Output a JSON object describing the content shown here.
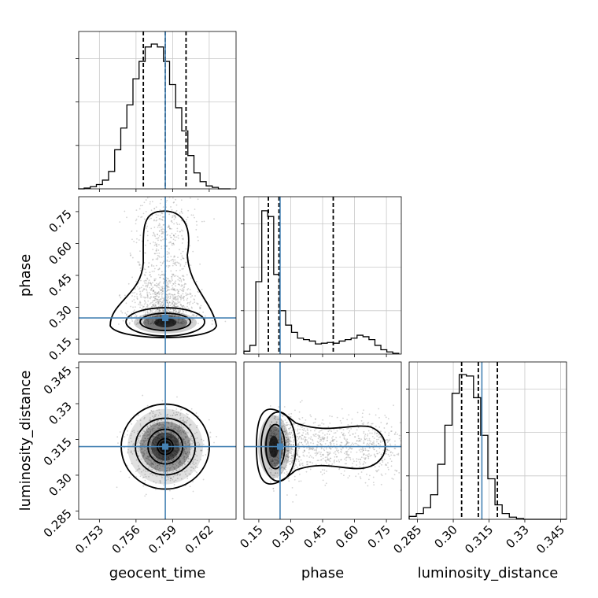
{
  "chart_data": {
    "type": "corner",
    "parameters": [
      "geocent_time",
      "phase",
      "luminosity_distance"
    ],
    "truths": {
      "geocent_time": 0.7584,
      "phase": 0.25,
      "luminosity_distance": 0.312
    },
    "panels": [
      {
        "type": "histogram",
        "parameter": "geocent_time",
        "xlim": [
          0.7513,
          0.7642
        ],
        "xticks": [
          0.753,
          0.756,
          0.759,
          0.762
        ],
        "bin_edges": [
          0.75125,
          0.75175,
          0.75225,
          0.75275,
          0.75325,
          0.75375,
          0.75425,
          0.75475,
          0.75525,
          0.75575,
          0.75625,
          0.75675,
          0.75725,
          0.75775,
          0.75825,
          0.75875,
          0.75925,
          0.75975,
          0.76025,
          0.76075,
          0.76125,
          0.76175,
          0.76225,
          0.76275,
          0.76325,
          0.76375
        ],
        "counts": [
          0,
          0.005,
          0.015,
          0.03,
          0.06,
          0.12,
          0.27,
          0.42,
          0.58,
          0.76,
          0.88,
          0.98,
          1.0,
          0.98,
          0.88,
          0.72,
          0.56,
          0.4,
          0.23,
          0.11,
          0.05,
          0.02,
          0.01,
          0,
          0
        ],
        "quantiles": [
          0.7566,
          0.7584,
          0.7601
        ],
        "grid": true
      },
      {
        "type": "histogram",
        "parameter": "phase",
        "xlim": [
          0.08,
          0.82
        ],
        "xticks": [
          0.15,
          0.3,
          0.45,
          0.6,
          0.75
        ],
        "bin_edges": [
          0.08,
          0.108,
          0.136,
          0.164,
          0.192,
          0.22,
          0.248,
          0.276,
          0.304,
          0.332,
          0.36,
          0.388,
          0.416,
          0.444,
          0.472,
          0.5,
          0.528,
          0.556,
          0.584,
          0.612,
          0.64,
          0.668,
          0.696,
          0.724,
          0.752,
          0.78,
          0.808
        ],
        "counts": [
          0.02,
          0.06,
          0.5,
          0.99,
          0.95,
          0.55,
          0.3,
          0.2,
          0.15,
          0.11,
          0.1,
          0.09,
          0.07,
          0.075,
          0.08,
          0.075,
          0.09,
          0.1,
          0.11,
          0.13,
          0.12,
          0.1,
          0.06,
          0.03,
          0.015,
          0.005
        ],
        "quantiles": [
          0.195,
          0.245,
          0.5
        ],
        "grid": true
      },
      {
        "type": "histogram",
        "parameter": "luminosity_distance",
        "xlim": [
          0.2815,
          0.3475
        ],
        "xticks": [
          0.285,
          0.3,
          0.315,
          0.33,
          0.345
        ],
        "bin_edges": [
          0.2815,
          0.2845,
          0.2875,
          0.2905,
          0.2935,
          0.2965,
          0.2995,
          0.3025,
          0.3055,
          0.3085,
          0.3115,
          0.3145,
          0.3175,
          0.3205,
          0.3235,
          0.3265,
          0.3295,
          0.3325,
          0.3355,
          0.3385,
          0.3415,
          0.3445,
          0.3475
        ],
        "counts": [
          0.02,
          0.04,
          0.08,
          0.17,
          0.38,
          0.65,
          0.87,
          1.0,
          0.99,
          0.84,
          0.58,
          0.28,
          0.1,
          0.04,
          0.015,
          0.005,
          0,
          0,
          0,
          0,
          0,
          0
        ],
        "quantiles": [
          0.3035,
          0.3105,
          0.3185
        ],
        "grid": true
      },
      {
        "type": "2d_density",
        "x": "geocent_time",
        "y": "phase",
        "xlim": [
          0.7513,
          0.7642
        ],
        "ylim": [
          0.08,
          0.82
        ],
        "yticks": [
          0.15,
          0.3,
          0.45,
          0.6,
          0.75
        ],
        "ylabel": "phase"
      },
      {
        "type": "2d_density",
        "x": "geocent_time",
        "y": "luminosity_distance",
        "xlim": [
          0.7513,
          0.7642
        ],
        "ylim": [
          0.2815,
          0.3475
        ],
        "xticks": [
          0.753,
          0.756,
          0.759,
          0.762
        ],
        "yticks": [
          0.285,
          0.3,
          0.315,
          0.33,
          0.345
        ],
        "xlabel": "geocent_time",
        "ylabel": "luminosity_distance"
      },
      {
        "type": "2d_density",
        "x": "phase",
        "y": "luminosity_distance",
        "xlim": [
          0.08,
          0.82
        ],
        "ylim": [
          0.2815,
          0.3475
        ],
        "xticks": [
          0.15,
          0.3,
          0.45,
          0.6,
          0.75
        ],
        "xlabel": "phase"
      }
    ],
    "diagonal_xlabel": "luminosity_distance",
    "colors": {
      "truth": "#4682b4",
      "histogram": "#000000",
      "points": "#808080",
      "grid": "#c8c8c8"
    }
  }
}
